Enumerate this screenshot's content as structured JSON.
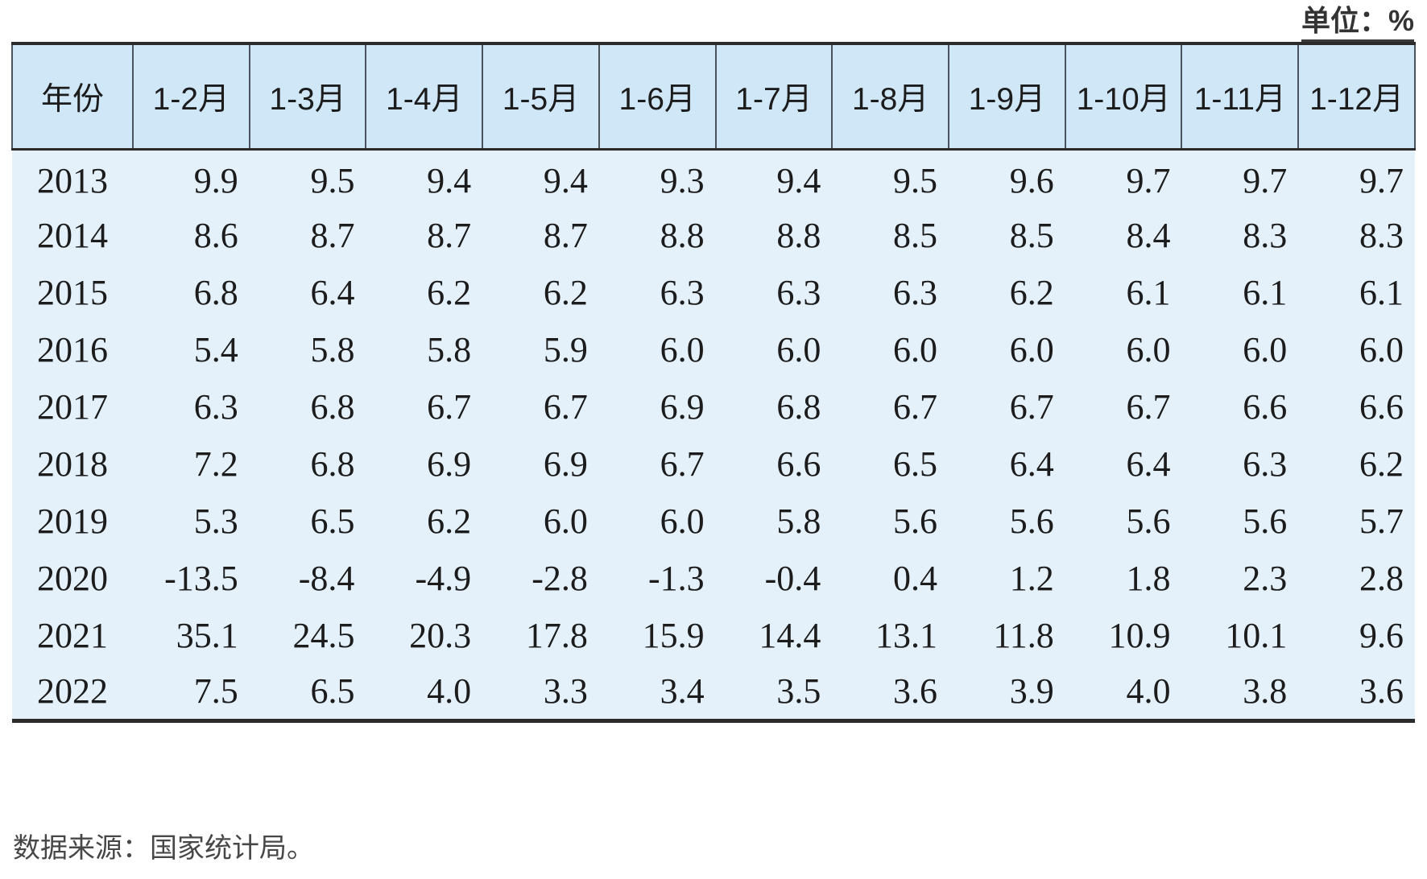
{
  "unit_label": "单位：%",
  "source_note": "数据来源：国家统计局。",
  "colors": {
    "header_bg": "#cfe7f7",
    "body_bg": "#e4f1fb",
    "border_dark": "#2b2b2b",
    "separator": "#49545e",
    "text": "#1c1c1c",
    "note_text": "#474747"
  },
  "chart_data": {
    "type": "table",
    "unit": "%",
    "columns": [
      "年份",
      "1-2月",
      "1-3月",
      "1-4月",
      "1-5月",
      "1-6月",
      "1-7月",
      "1-8月",
      "1-9月",
      "1-10月",
      "1-11月",
      "1-12月"
    ],
    "rows": [
      {
        "year": "2013",
        "values": [
          "9.9",
          "9.5",
          "9.4",
          "9.4",
          "9.3",
          "9.4",
          "9.5",
          "9.6",
          "9.7",
          "9.7",
          "9.7"
        ]
      },
      {
        "year": "2014",
        "values": [
          "8.6",
          "8.7",
          "8.7",
          "8.7",
          "8.8",
          "8.8",
          "8.5",
          "8.5",
          "8.4",
          "8.3",
          "8.3"
        ]
      },
      {
        "year": "2015",
        "values": [
          "6.8",
          "6.4",
          "6.2",
          "6.2",
          "6.3",
          "6.3",
          "6.3",
          "6.2",
          "6.1",
          "6.1",
          "6.1"
        ]
      },
      {
        "year": "2016",
        "values": [
          "5.4",
          "5.8",
          "5.8",
          "5.9",
          "6.0",
          "6.0",
          "6.0",
          "6.0",
          "6.0",
          "6.0",
          "6.0"
        ]
      },
      {
        "year": "2017",
        "values": [
          "6.3",
          "6.8",
          "6.7",
          "6.7",
          "6.9",
          "6.8",
          "6.7",
          "6.7",
          "6.7",
          "6.6",
          "6.6"
        ]
      },
      {
        "year": "2018",
        "values": [
          "7.2",
          "6.8",
          "6.9",
          "6.9",
          "6.7",
          "6.6",
          "6.5",
          "6.4",
          "6.4",
          "6.3",
          "6.2"
        ]
      },
      {
        "year": "2019",
        "values": [
          "5.3",
          "6.5",
          "6.2",
          "6.0",
          "6.0",
          "5.8",
          "5.6",
          "5.6",
          "5.6",
          "5.6",
          "5.7"
        ]
      },
      {
        "year": "2020",
        "values": [
          "-13.5",
          "-8.4",
          "-4.9",
          "-2.8",
          "-1.3",
          "-0.4",
          "0.4",
          "1.2",
          "1.8",
          "2.3",
          "2.8"
        ]
      },
      {
        "year": "2021",
        "values": [
          "35.1",
          "24.5",
          "20.3",
          "17.8",
          "15.9",
          "14.4",
          "13.1",
          "11.8",
          "10.9",
          "10.1",
          "9.6"
        ]
      },
      {
        "year": "2022",
        "values": [
          "7.5",
          "6.5",
          "4.0",
          "3.3",
          "3.4",
          "3.5",
          "3.6",
          "3.9",
          "4.0",
          "3.8",
          "3.6"
        ]
      }
    ]
  }
}
